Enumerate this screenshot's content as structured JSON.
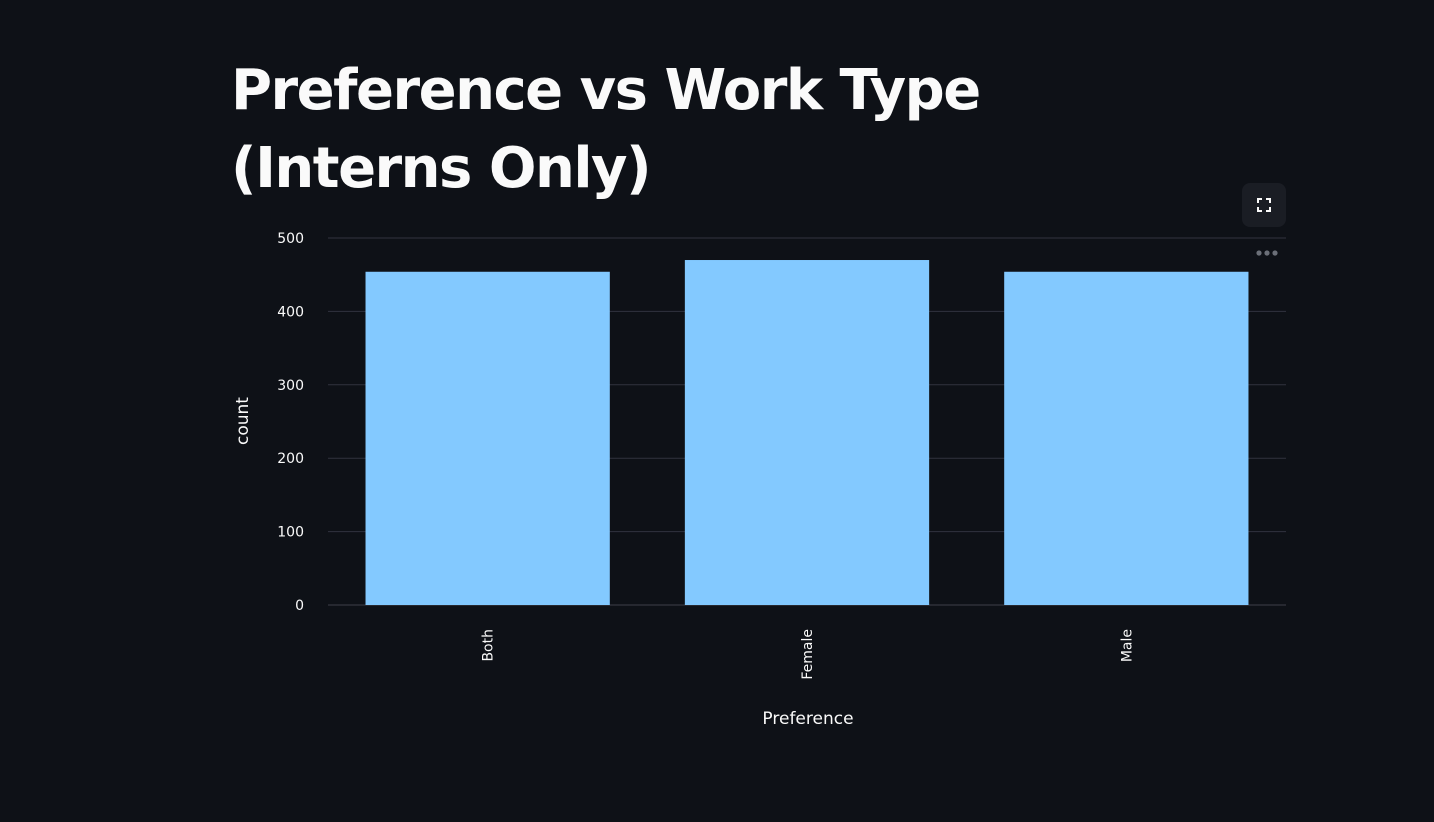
{
  "title": "Preference vs Work Type (Interns Only)",
  "toolbar": {
    "fullscreen_icon": "expand-icon",
    "menu_icon": "more-horizontal-icon"
  },
  "colors": {
    "background": "#0e1117",
    "bar": "#83c9ff",
    "grid": "#31333f",
    "text": "#fafafa"
  },
  "chart_data": {
    "type": "bar",
    "categories": [
      "Both",
      "Female",
      "Male"
    ],
    "values": [
      454,
      470,
      454
    ],
    "title": "Preference vs Work Type (Interns Only)",
    "xlabel": "Preference",
    "ylabel": "count",
    "ylim": [
      0,
      500
    ],
    "yticks": [
      0,
      100,
      200,
      300,
      400,
      500
    ],
    "grid": true,
    "legend": "none",
    "x_tick_rotation": "vertical"
  }
}
